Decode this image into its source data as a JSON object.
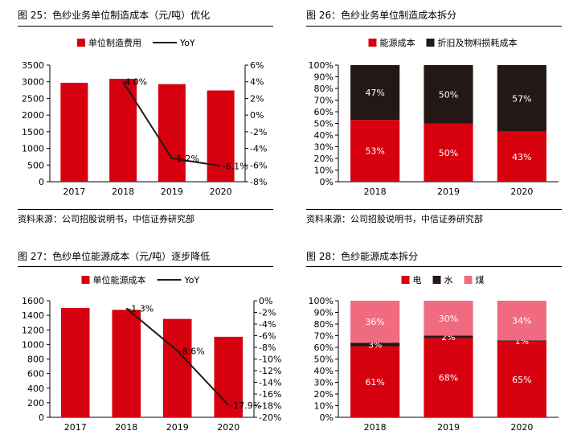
{
  "charts": [
    {
      "title": "图 25：色纱业务单位制造成本（元/吨）优化",
      "source": "资料来源：公司招股说明书，中信证券研究部"
    },
    {
      "title": "图 26：色纱业务单位制造成本拆分",
      "source": "资料来源：公司招股说明书，中信证券研究部"
    },
    {
      "title": "图 27：色纱单位能源成本（元/吨）逐步降低",
      "source": ""
    },
    {
      "title": "图 28：色纱能源成本拆分",
      "source": ""
    }
  ],
  "colors": {
    "red": "#d7000f",
    "black": "#231815",
    "pink": "#f06b80"
  },
  "chart_data": [
    {
      "type": "bar",
      "categories": [
        "2017",
        "2018",
        "2019",
        "2020"
      ],
      "series": [
        {
          "name": "单位制造费用",
          "type": "bar",
          "values": [
            2970,
            3090,
            2930,
            2740
          ],
          "color": "#d7000f"
        },
        {
          "name": "YoY",
          "type": "line",
          "axis": "right",
          "values": [
            null,
            4.0,
            -5.2,
            -6.1
          ],
          "labels": [
            "",
            "4.0%",
            "-5.2%",
            "-6.1%"
          ],
          "color": "#231815"
        }
      ],
      "ylim": [
        0,
        3500
      ],
      "yticks": [
        "0",
        "500",
        "1000",
        "1500",
        "2000",
        "2500",
        "3000",
        "3500"
      ],
      "y2lim": [
        -8,
        6
      ],
      "y2ticks": [
        "-8%",
        "-6%",
        "-4%",
        "-2%",
        "0%",
        "2%",
        "4%",
        "6%"
      ],
      "legend": "top"
    },
    {
      "type": "bar",
      "stacked": true,
      "categories": [
        "2018",
        "2019",
        "2020"
      ],
      "series": [
        {
          "name": "能源成本",
          "values": [
            53,
            50,
            43
          ],
          "labels": [
            "53%",
            "50%",
            "43%"
          ],
          "color": "#d7000f"
        },
        {
          "name": "折旧及物料损耗成本",
          "values": [
            47,
            50,
            57
          ],
          "labels": [
            "47%",
            "50%",
            "57%"
          ],
          "color": "#231815"
        }
      ],
      "ylim": [
        0,
        100
      ],
      "yticks": [
        "0%",
        "10%",
        "20%",
        "30%",
        "40%",
        "50%",
        "60%",
        "70%",
        "80%",
        "90%",
        "100%"
      ],
      "legend": "top"
    },
    {
      "type": "bar",
      "categories": [
        "2017",
        "2018",
        "2019",
        "2020"
      ],
      "series": [
        {
          "name": "单位能源成本",
          "type": "bar",
          "values": [
            1500,
            1475,
            1350,
            1105
          ],
          "color": "#d7000f"
        },
        {
          "name": "YoY",
          "type": "line",
          "axis": "right",
          "values": [
            null,
            -1.3,
            -8.6,
            -17.9
          ],
          "labels": [
            "",
            "-1.3%",
            "-8.6%",
            "-17.9%"
          ],
          "color": "#231815"
        }
      ],
      "ylim": [
        0,
        1600
      ],
      "yticks": [
        "0",
        "200",
        "400",
        "600",
        "800",
        "1000",
        "1200",
        "1400",
        "1600"
      ],
      "y2lim": [
        -20,
        0
      ],
      "y2ticks": [
        "-20%",
        "-18%",
        "-16%",
        "-14%",
        "-12%",
        "-10%",
        "-8%",
        "-6%",
        "-4%",
        "-2%",
        "0%"
      ],
      "legend": "top"
    },
    {
      "type": "bar",
      "stacked": true,
      "categories": [
        "2018",
        "2019",
        "2020"
      ],
      "series": [
        {
          "name": "电",
          "values": [
            61,
            68,
            65
          ],
          "labels": [
            "61%",
            "68%",
            "65%"
          ],
          "color": "#d7000f"
        },
        {
          "name": "水",
          "values": [
            3,
            2,
            1
          ],
          "labels": [
            "3%",
            "2%",
            "1%"
          ],
          "color": "#231815"
        },
        {
          "name": "煤",
          "values": [
            36,
            30,
            34
          ],
          "labels": [
            "36%",
            "30%",
            "34%"
          ],
          "color": "#f06b80"
        }
      ],
      "ylim": [
        0,
        100
      ],
      "yticks": [
        "0%",
        "10%",
        "20%",
        "30%",
        "40%",
        "50%",
        "60%",
        "70%",
        "80%",
        "90%",
        "100%"
      ],
      "legend": "top"
    }
  ]
}
